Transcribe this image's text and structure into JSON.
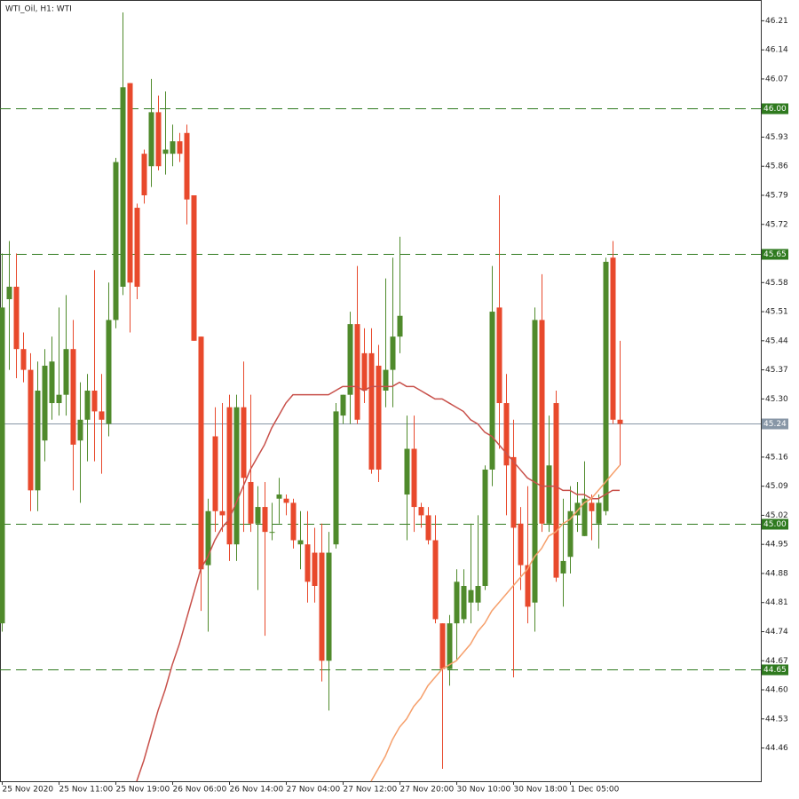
{
  "chart_data": {
    "type": "candlestick",
    "title": "WTI_Oil, H1:  WTI",
    "categories": [
      "25 Nov 2020",
      null,
      null,
      null,
      null,
      null,
      null,
      null,
      "25 Nov 11:00",
      null,
      null,
      null,
      null,
      null,
      null,
      null,
      "25 Nov 19:00",
      null,
      null,
      null,
      null,
      null,
      null,
      null,
      "26 Nov 06:00",
      null,
      null,
      null,
      null,
      null,
      null,
      null,
      "26 Nov 14:00",
      null,
      null,
      null,
      null,
      null,
      null,
      null,
      "27 Nov 04:00",
      null,
      null,
      null,
      null,
      null,
      null,
      null,
      "27 Nov 12:00",
      null,
      null,
      null,
      null,
      null,
      null,
      null,
      "27 Nov 20:00",
      null,
      null,
      null,
      null,
      null,
      null,
      null,
      "30 Nov 10:00",
      null,
      null,
      null,
      null,
      null,
      null,
      null,
      "30 Nov 18:00",
      null,
      null,
      null,
      null,
      null,
      null,
      null,
      "1 Dec 05:00",
      null,
      null,
      null,
      null,
      null,
      null,
      null
    ],
    "open": [
      44.76,
      45.54,
      45.57,
      45.42,
      45.37,
      45.08,
      45.2,
      45.29,
      45.29,
      45.31,
      45.42,
      45.2,
      45.25,
      45.32,
      45.27,
      45.24,
      45.49,
      45.57,
      46.06,
      45.76,
      45.89,
      45.86,
      45.99,
      45.89,
      45.89,
      45.92,
      45.94,
      45.79,
      45.45,
      44.9,
      45.21,
      45.03,
      45.28,
      44.95,
      45.28,
      45.1,
      45.0,
      45.04,
      44.98,
      45.06,
      45.06,
      45.05,
      44.95,
      44.95,
      44.93,
      44.93,
      44.67,
      44.95,
      45.26,
      45.31,
      45.48,
      45.41,
      45.41,
      45.38,
      45.32,
      45.37,
      45.45,
      45.07,
      45.18,
      45.04,
      45.02,
      44.96,
      44.76,
      44.65,
      44.76,
      44.77,
      44.81,
      44.81,
      44.85,
      45.13,
      45.52,
      45.29,
      45.16,
      45.0,
      44.9,
      44.81,
      45.49,
      45.0,
      45.29,
      44.88,
      44.92,
      45.02,
      44.97,
      45.05,
      45.0,
      45.03,
      45.64,
      45.25
    ],
    "high": [
      45.65,
      45.68,
      45.65,
      45.46,
      45.41,
      45.39,
      45.42,
      45.45,
      45.52,
      45.55,
      45.49,
      45.34,
      45.36,
      45.61,
      45.36,
      45.58,
      45.88,
      46.23,
      46.06,
      45.77,
      45.9,
      46.07,
      46.03,
      46.04,
      45.96,
      45.94,
      45.96,
      45.79,
      45.45,
      45.06,
      45.28,
      45.29,
      45.31,
      45.31,
      45.39,
      45.31,
      45.09,
      45.1,
      45.05,
      45.11,
      45.07,
      45.06,
      45.03,
      45.03,
      44.99,
      45.0,
      44.98,
      45.29,
      45.31,
      45.51,
      45.62,
      45.47,
      45.47,
      45.43,
      45.59,
      45.64,
      45.69,
      45.26,
      45.26,
      45.05,
      45.04,
      45.02,
      44.76,
      44.78,
      44.89,
      44.89,
      45.0,
      45.02,
      45.14,
      45.62,
      45.79,
      45.36,
      45.25,
      45.04,
      45.09,
      45.52,
      45.6,
      45.26,
      45.32,
      45.06,
      45.09,
      45.1,
      45.15,
      45.07,
      45.07,
      45.64,
      45.68,
      45.44
    ],
    "low": [
      44.74,
      45.37,
      45.35,
      45.34,
      45.03,
      45.03,
      45.15,
      45.25,
      45.26,
      45.26,
      45.08,
      45.05,
      45.15,
      45.15,
      45.12,
      45.21,
      45.47,
      45.55,
      45.46,
      45.54,
      45.77,
      45.81,
      45.85,
      45.84,
      45.86,
      45.87,
      45.72,
      45.44,
      44.79,
      44.74,
      44.98,
      44.98,
      44.91,
      44.91,
      44.98,
      44.98,
      44.84,
      44.73,
      44.96,
      45.0,
      45.02,
      44.94,
      44.89,
      44.81,
      44.81,
      44.62,
      44.55,
      44.94,
      45.24,
      45.24,
      45.24,
      45.29,
      45.12,
      45.1,
      45.28,
      45.28,
      45.41,
      44.96,
      44.98,
      44.99,
      44.95,
      44.76,
      44.41,
      44.61,
      44.67,
      44.76,
      44.76,
      44.79,
      44.84,
      45.09,
      45.18,
      45.02,
      44.63,
      44.84,
      44.76,
      44.74,
      44.98,
      44.98,
      44.86,
      44.8,
      44.88,
      44.98,
      44.97,
      44.96,
      44.94,
      45.02,
      45.24,
      45.14
    ],
    "close": [
      45.52,
      45.57,
      45.42,
      45.37,
      45.08,
      45.32,
      45.38,
      45.39,
      45.31,
      45.42,
      45.19,
      45.25,
      45.32,
      45.27,
      45.25,
      45.49,
      45.87,
      46.05,
      45.58,
      45.57,
      45.79,
      45.99,
      45.86,
      45.9,
      45.92,
      45.89,
      45.78,
      45.44,
      44.89,
      45.03,
      45.03,
      45.02,
      44.95,
      45.28,
      45.11,
      45.0,
      45.04,
      44.98,
      44.98,
      45.07,
      45.05,
      44.96,
      44.96,
      44.86,
      44.85,
      44.67,
      44.93,
      45.27,
      45.31,
      45.48,
      45.25,
      45.32,
      45.13,
      45.13,
      45.37,
      45.45,
      45.5,
      45.18,
      45.04,
      45.02,
      44.96,
      44.77,
      44.65,
      44.76,
      44.86,
      44.85,
      44.84,
      44.85,
      45.13,
      45.51,
      45.29,
      45.14,
      44.99,
      44.9,
      44.8,
      45.49,
      45.0,
      45.14,
      44.87,
      44.91,
      45.03,
      45.05,
      45.06,
      45.03,
      45.05,
      45.63,
      45.25,
      45.24
    ],
    "up_color": "#4f8a2b",
    "down_color": "#e8492c",
    "moving_averages": [
      {
        "color": "#c8504a",
        "values": [
          null,
          null,
          null,
          null,
          null,
          null,
          null,
          null,
          null,
          null,
          null,
          null,
          null,
          null,
          null,
          null,
          null,
          null,
          null,
          44.38,
          44.43,
          44.49,
          44.55,
          44.6,
          44.66,
          44.71,
          44.77,
          44.83,
          44.89,
          44.92,
          44.96,
          44.99,
          45.01,
          45.05,
          45.09,
          45.13,
          45.16,
          45.19,
          45.23,
          45.26,
          45.29,
          45.31,
          45.31,
          45.31,
          45.31,
          45.31,
          45.31,
          45.32,
          45.33,
          45.33,
          45.33,
          45.32,
          45.33,
          45.33,
          45.33,
          45.33,
          45.34,
          45.33,
          45.33,
          45.32,
          45.31,
          45.3,
          45.3,
          45.29,
          45.28,
          45.27,
          45.25,
          45.24,
          45.22,
          45.21,
          45.19,
          45.17,
          45.15,
          45.13,
          45.11,
          45.1,
          45.09,
          45.09,
          45.09,
          45.08,
          45.08,
          45.07,
          45.07,
          45.06,
          45.06,
          45.07,
          45.08,
          45.08
        ]
      },
      {
        "color": "#f6a06c",
        "values": [
          null,
          null,
          null,
          null,
          null,
          null,
          null,
          null,
          null,
          null,
          null,
          null,
          null,
          null,
          null,
          null,
          null,
          null,
          null,
          null,
          null,
          null,
          null,
          null,
          null,
          null,
          null,
          null,
          null,
          null,
          null,
          null,
          null,
          null,
          null,
          null,
          null,
          null,
          null,
          null,
          null,
          null,
          null,
          null,
          null,
          null,
          null,
          null,
          null,
          null,
          null,
          null,
          44.38,
          44.41,
          44.44,
          44.48,
          44.51,
          44.53,
          44.56,
          44.58,
          44.61,
          44.63,
          44.65,
          44.66,
          44.67,
          44.69,
          44.71,
          44.74,
          44.76,
          44.79,
          44.81,
          44.83,
          44.85,
          44.87,
          44.89,
          44.92,
          44.94,
          44.97,
          44.98,
          45.0,
          45.01,
          45.03,
          45.05,
          45.06,
          45.08,
          45.1,
          45.12,
          45.14
        ]
      }
    ],
    "levels": [
      {
        "value": 46,
        "label": "46.00"
      },
      {
        "value": 45.65,
        "label": "45.65"
      },
      {
        "value": 45,
        "label": "45.00"
      },
      {
        "value": 44.65,
        "label": "44.65"
      }
    ],
    "level_color": "#2f7a1f",
    "last_price": {
      "value": 45.24,
      "label": "45.24"
    },
    "last_price_color": "#8796a6",
    "ylim": [
      44.38,
      46.26
    ],
    "yticks": [
      46.21,
      46.14,
      46.07,
      45.93,
      45.86,
      45.79,
      45.72,
      45.58,
      45.51,
      45.44,
      45.37,
      {
        "value": 45.3,
        "label": "45.30"
      },
      45.16,
      45.09,
      45.02,
      44.95,
      44.88,
      44.81,
      44.74,
      44.67,
      {
        "value": 44.6,
        "label": "44.60"
      },
      44.53,
      44.46
    ]
  }
}
